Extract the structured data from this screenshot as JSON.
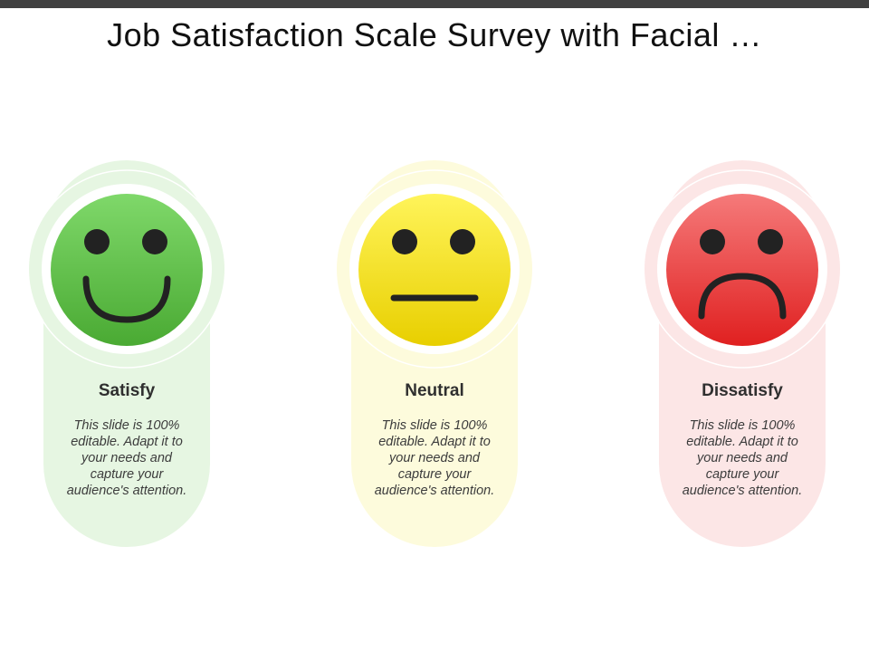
{
  "slide": {
    "title": "Job Satisfaction Scale Survey with Facial …"
  },
  "cards": [
    {
      "label": "Satisfy",
      "description": "This slide is 100% editable. Adapt it to your needs and capture your audience's attention.",
      "face_icon": "smiling-face-icon",
      "colors": {
        "panel": "#e6f6e2",
        "face_top": "#7fd86a",
        "face_bottom": "#4aaa33"
      }
    },
    {
      "label": "Neutral",
      "description": "This slide is 100% editable. Adapt it to your needs and capture your audience's attention.",
      "face_icon": "neutral-face-icon",
      "colors": {
        "panel": "#fdfbdc",
        "face_top": "#fff45a",
        "face_bottom": "#e8cf00"
      }
    },
    {
      "label": "Dissatisfy",
      "description": "This slide is 100% editable. Adapt it to your needs and capture your audience's attention.",
      "face_icon": "frowning-face-icon",
      "colors": {
        "panel": "#fce6e6",
        "face_top": "#f57a7a",
        "face_bottom": "#e02020"
      }
    }
  ]
}
